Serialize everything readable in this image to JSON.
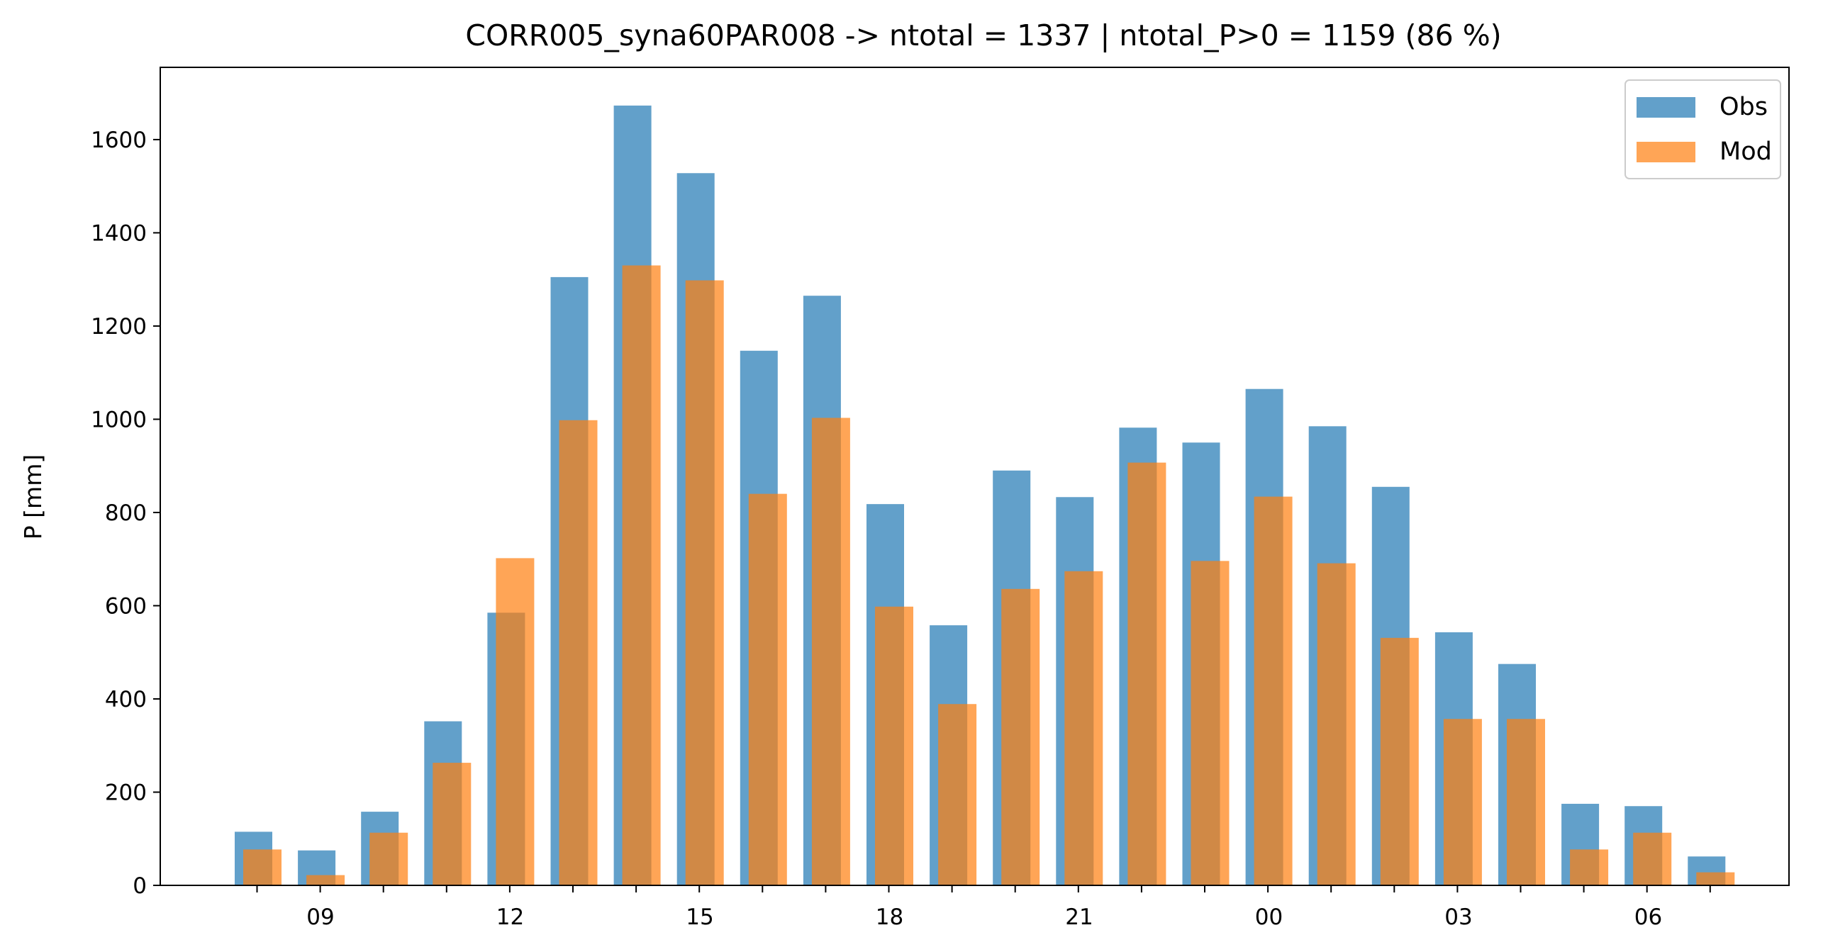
{
  "chart_data": {
    "type": "bar",
    "title": "CORR005_syna60PAR008 -> ntotal = 1337 | ntotal_P>0 = 1159 (86 %)",
    "ylabel": "P [mm]",
    "xlabel": "",
    "ylim": [
      0,
      1755
    ],
    "yticks": [
      0,
      200,
      400,
      600,
      800,
      1000,
      1200,
      1400,
      1600
    ],
    "hours": [
      "08",
      "09",
      "10",
      "11",
      "12",
      "13",
      "14",
      "15",
      "16",
      "17",
      "18",
      "19",
      "20",
      "21",
      "22",
      "23",
      "00",
      "01",
      "02",
      "03",
      "04",
      "05",
      "06",
      "07"
    ],
    "xtick_labels": [
      "09",
      "12",
      "15",
      "18",
      "21",
      "00",
      "03",
      "06"
    ],
    "series": [
      {
        "name": "Obs",
        "color": "#1f77b4",
        "opacity": 0.7,
        "values": [
          115,
          75,
          158,
          352,
          585,
          1305,
          1673,
          1528,
          1147,
          1265,
          818,
          558,
          890,
          833,
          982,
          950,
          1065,
          985,
          855,
          543,
          475,
          175,
          170,
          62
        ]
      },
      {
        "name": "Mod",
        "color": "#ff7f0e",
        "opacity": 0.7,
        "values": [
          77,
          22,
          113,
          263,
          702,
          998,
          1330,
          1298,
          840,
          1003,
          598,
          389,
          636,
          674,
          907,
          696,
          834,
          691,
          531,
          357,
          357,
          77,
          113,
          28
        ]
      }
    ],
    "legend_position": "top-right",
    "grid": false
  }
}
